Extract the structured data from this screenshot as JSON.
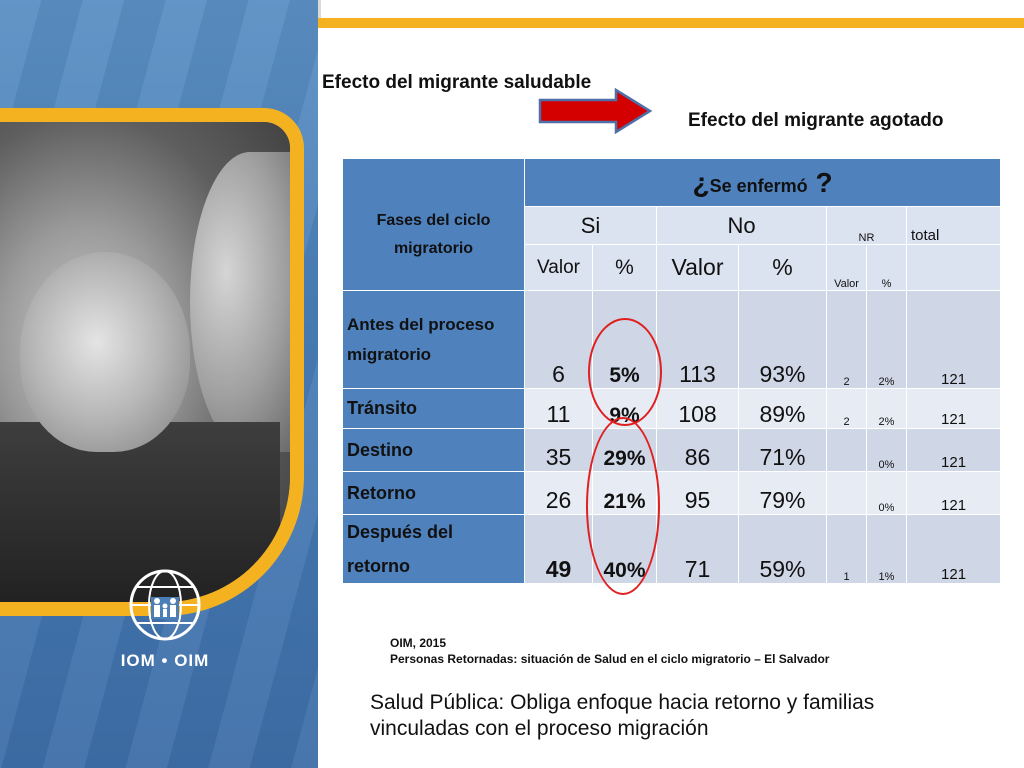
{
  "heading_left": "Efecto del migrante saludable",
  "heading_right": "Efecto del migrante agotado",
  "logo_text": "IOM • OIM",
  "table": {
    "fases_header": "Fases del ciclo migratorio",
    "question_prefix": "¿",
    "question_text": "Se enfermó",
    "question_suffix": " ?",
    "group_si": "Si",
    "group_no": "No",
    "group_nr": "NR",
    "group_total": "total",
    "sub_valor": "Valor",
    "sub_pct": "%",
    "rows": [
      {
        "label": "Antes del proceso migratorio",
        "si_valor": "6",
        "si_pct": "5%",
        "no_valor": "113",
        "no_pct": "93%",
        "nr_valor": "2",
        "nr_pct": "2%",
        "total": "121"
      },
      {
        "label": "Tránsito",
        "si_valor": "11",
        "si_pct": "9%",
        "no_valor": "108",
        "no_pct": "89%",
        "nr_valor": "2",
        "nr_pct": "2%",
        "total": "121"
      },
      {
        "label": "Destino",
        "si_valor": "35",
        "si_pct": "29%",
        "no_valor": "86",
        "no_pct": "71%",
        "nr_valor": "",
        "nr_pct": "0%",
        "total": "121"
      },
      {
        "label": "Retorno",
        "si_valor": "26",
        "si_pct": "21%",
        "no_valor": "95",
        "no_pct": "79%",
        "nr_valor": "",
        "nr_pct": "0%",
        "total": "121"
      },
      {
        "label": "Después del retorno",
        "si_valor": "49",
        "si_pct": "40%",
        "no_valor": "71",
        "no_pct": "59%",
        "nr_valor": "1",
        "nr_pct": "1%",
        "total": "121"
      }
    ]
  },
  "source_line1": "OIM, 2015",
  "source_line2_bold": "Personas Retornadas: ",
  "source_line2_rest": "situación de Salud en el ciclo migratorio – El Salvador",
  "bottom_text": "Salud Pública: Obliga enfoque hacia retorno y familias vinculadas con el proceso migración",
  "colors": {
    "accent_yellow": "#f5b220",
    "table_blue": "#4f81bd",
    "cell_light": "#cfd6e6",
    "circle_red": "#e02020"
  }
}
